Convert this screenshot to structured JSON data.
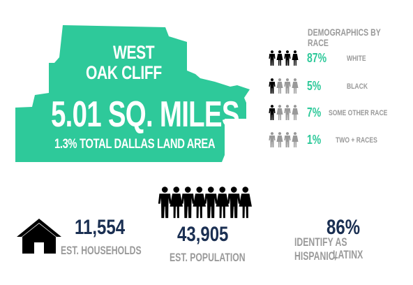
{
  "area": {
    "name_line1": "WEST",
    "name_line2": "OAK CLIFF",
    "size": "5.01 SQ. MILES",
    "share": "1.3% TOTAL DALLAS LAND AREA",
    "fill_color": "#2ec99a"
  },
  "demographics": {
    "title": "DEMOGRAPHICS BY RACE",
    "highlight_color": "#000000",
    "muted_color": "#999999",
    "rows": [
      {
        "pct": "87%",
        "label": "WHITE",
        "icon_count": 4,
        "highlighted": 4
      },
      {
        "pct": "5%",
        "label": "BLACK",
        "icon_count": 4,
        "highlighted": 1
      },
      {
        "pct": "7%",
        "label": "SOME OTHER RACE",
        "icon_count": 4,
        "highlighted": 1
      },
      {
        "pct": "1%",
        "label": "TWO + RACES",
        "icon_count": 4,
        "highlighted": 0
      }
    ]
  },
  "households": {
    "value": "11,554",
    "label": "EST. HOUSEHOLDS",
    "icon": "house-icon"
  },
  "population": {
    "value": "43,905",
    "label": "EST. POPULATION",
    "icon": "people-icon",
    "people_count": 8
  },
  "hispanic": {
    "value": "86%",
    "label_line1": "IDENTIFY AS HISPANIC/",
    "label_line2": "LATINX"
  }
}
